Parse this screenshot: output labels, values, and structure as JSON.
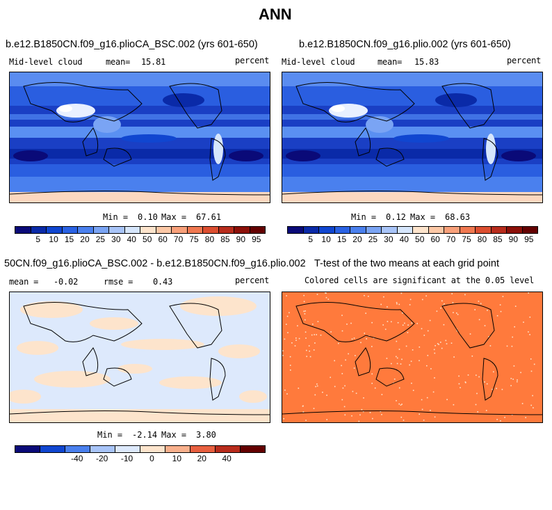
{
  "figure_title": "ANN",
  "panels": {
    "a": {
      "title": "b.e12.B1850CN.f09_g16.plioCA_BSC.002 (yrs 601-650)",
      "left_label": "Mid-level cloud",
      "mean_label": "mean=",
      "mean_value": "15.81",
      "units": "percent",
      "min_label": "Min =",
      "min_value": "0.10",
      "max_label": "Max =",
      "max_value": "67.61"
    },
    "b": {
      "title": "b.e12.B1850CN.f09_g16.plio.002 (yrs 601-650)",
      "left_label": "Mid-level cloud",
      "mean_label": "mean=",
      "mean_value": "15.83",
      "units": "percent",
      "min_label": "Min =",
      "min_value": "0.12",
      "max_label": "Max =",
      "max_value": "68.63"
    },
    "c": {
      "title": "50CN.f09_g16.plioCA_BSC.002 - b.e12.B1850CN.f09_g16.plio.002",
      "mean_label": "mean =",
      "mean_value": "-0.02",
      "rmse_label": "rmse =",
      "rmse_value": "0.43",
      "units": "percent",
      "min_label": "Min =",
      "min_value": "-2.14",
      "max_label": "Max =",
      "max_value": "3.80"
    },
    "d": {
      "title": "T-test of the two means at each grid point",
      "subtitle": "Colored cells are significant at the 0.05 level",
      "fill_color": "#ff7a3c"
    }
  },
  "colorbar_abs": {
    "labels": [
      "5",
      "10",
      "15",
      "20",
      "25",
      "30",
      "40",
      "50",
      "60",
      "70",
      "75",
      "80",
      "85",
      "90",
      "95"
    ],
    "colors": [
      "#0a0a78",
      "#0a2aa8",
      "#1046d0",
      "#2a62e4",
      "#4a80ee",
      "#7aa4f4",
      "#a8c4f8",
      "#d6e6fc",
      "#fde4cc",
      "#fcc8a6",
      "#f8a07a",
      "#f07850",
      "#dc4e30",
      "#b82c1c",
      "#8c1008",
      "#640000"
    ]
  },
  "colorbar_diff": {
    "labels": [
      "-40",
      "-20",
      "-10",
      "0",
      "10",
      "20",
      "40"
    ],
    "colors": [
      "#0a0a78",
      "#1046d0",
      "#4a80ee",
      "#a8c4f8",
      "#dde9fc",
      "#fde4cc",
      "#f8b08c",
      "#e86040",
      "#b82c1c",
      "#640000"
    ]
  }
}
